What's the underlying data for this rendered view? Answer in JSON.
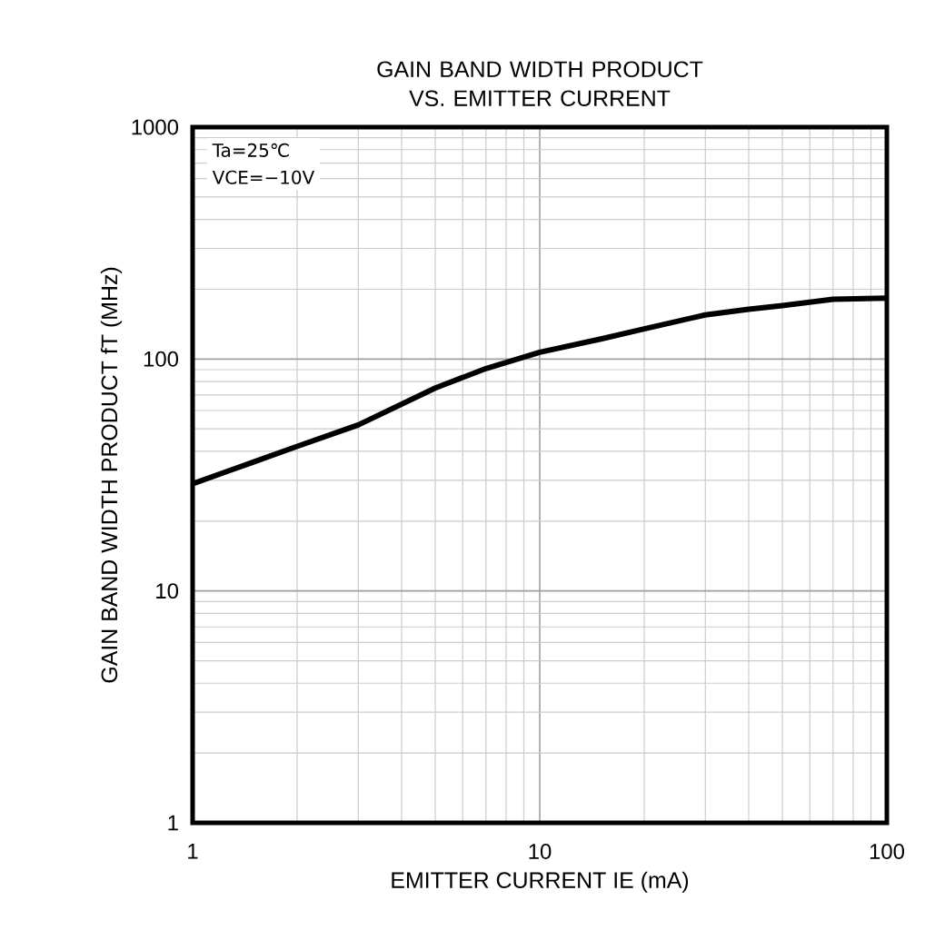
{
  "chart_data": {
    "type": "line",
    "title": "GAIN BAND WIDTH PRODUCT VS. EMITTER CURRENT",
    "xlabel": "EMITTER CURRENT IE (mA)",
    "ylabel": "GAIN BAND WIDTH PRODUCT fT (MHz)",
    "annotations": [
      "Ta=25℃",
      "VCE=−10V"
    ],
    "x": [
      1,
      1.5,
      2,
      3,
      5,
      7,
      10,
      15,
      20,
      30,
      40,
      50,
      70,
      100
    ],
    "series": [
      {
        "color": "#000000",
        "values": [
          29,
          36,
          42,
          52,
          75,
          91,
          107,
          122,
          135,
          155,
          164,
          170,
          181,
          183
        ]
      }
    ],
    "xlim": [
      1,
      100
    ],
    "ylim": [
      1,
      1000
    ],
    "xticks": [
      1,
      10,
      100
    ],
    "yticks": [
      1,
      10,
      100,
      1000
    ],
    "log": "xy",
    "grid": true,
    "marker": "none",
    "line_style": "solid"
  }
}
